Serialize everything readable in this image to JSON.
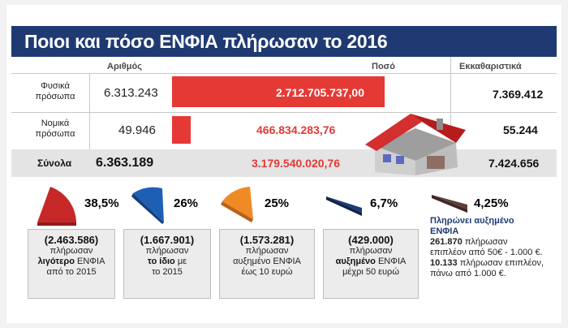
{
  "title": "Ποιοι και πόσο ΕΝΦΙΑ πλήρωσαν το 2016",
  "headers": {
    "number": "Αριθμός",
    "amount": "Ποσό",
    "notices": "Εκκαθαριστικά"
  },
  "rows": [
    {
      "label_line1": "Φυσικά",
      "label_line2": "πρόσωπα",
      "number": "6.313.243",
      "amount": "2.712.705.737,00",
      "notices": "7.369.412"
    },
    {
      "label_line1": "Νομικά",
      "label_line2": "πρόσωπα",
      "number": "49.946",
      "amount": "466.834.283,76",
      "notices": "55.244"
    }
  ],
  "totals": {
    "label": "Σύνολα",
    "number": "6.363.189",
    "amount": "3.179.540.020,76",
    "notices": "7.424.656"
  },
  "chart_data": [
    {
      "type": "bar",
      "categories": [
        "Φυσικά πρόσωπα",
        "Νομικά πρόσωπα"
      ],
      "values": [
        2712705737.0,
        466834283.76
      ],
      "title": "",
      "xlabel": "",
      "ylabel": "Ποσό"
    },
    {
      "type": "pie",
      "categories": [
        "38,5%",
        "26%",
        "25%",
        "6,7%",
        "4,25%"
      ],
      "values": [
        38.5,
        26,
        25,
        6.7,
        4.25
      ]
    }
  ],
  "groups": [
    {
      "pct": "38,5%",
      "color": "#c62828",
      "pct_color": "#e53935",
      "count": "(2.463.586)",
      "l1": "πλήρωσαν",
      "l2b": "λιγότερο",
      "l2": " ΕΝΦΙΑ",
      "l3": "από το 2015"
    },
    {
      "pct": "26%",
      "color": "#1e5fb4",
      "pct_color": "#1e5fb4",
      "count": "(1.667.901)",
      "l1": "πλήρωσαν",
      "l2b": "το ίδιο",
      "l2": " με",
      "l3": "το 2015"
    },
    {
      "pct": "25%",
      "color": "#f08a24",
      "pct_color": "#f08a24",
      "count": "(1.573.281)",
      "l1": "πλήρωσαν",
      "l2b": "",
      "l2": "αυξημένο ΕΝΦΙΑ",
      "l3": "έως 10 ευρώ"
    },
    {
      "pct": "6,7%",
      "color": "#1f3a73",
      "pct_color": "#1f3a73",
      "count": "(429.000)",
      "l1": "πλήρωσαν",
      "l2b": "αυξημένο",
      "l2": " ΕΝΦΙΑ",
      "l3": "μέχρι 50 ευρώ"
    },
    {
      "pct": "4,25%",
      "color": "#5d4037",
      "pct_color": "#444444"
    }
  ],
  "note": {
    "head1": "Πληρώνει αυξημένο",
    "head2": "ΕΝΦΙΑ",
    "n1": "261.870",
    "t1": " πλήρωσαν",
    "t1b": "επιπλέον από 50€ - 1.000 €.",
    "n2": "10.133",
    "t2": " πλήρωσαν επιπλέον,",
    "t2b": "πάνω από 1.000 €."
  }
}
